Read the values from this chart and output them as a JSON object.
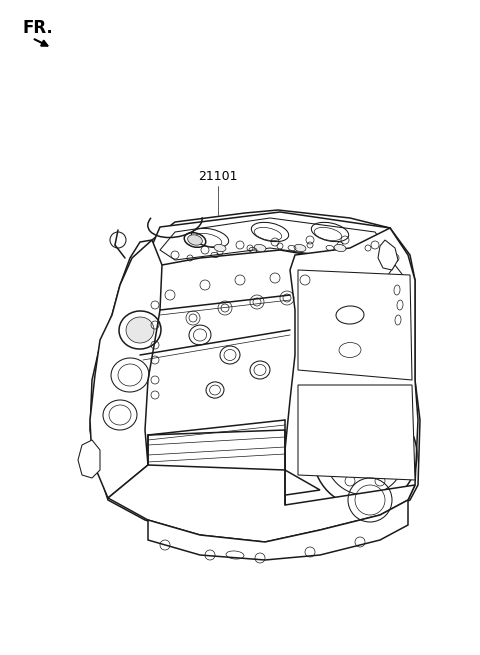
{
  "background_color": "#ffffff",
  "fr_label": "FR.",
  "part_number": "21101",
  "figure_width": 4.8,
  "figure_height": 6.55,
  "dpi": 100,
  "lc": "#1a1a1a",
  "lw_main": 1.1,
  "lw_med": 0.75,
  "lw_thin": 0.5
}
